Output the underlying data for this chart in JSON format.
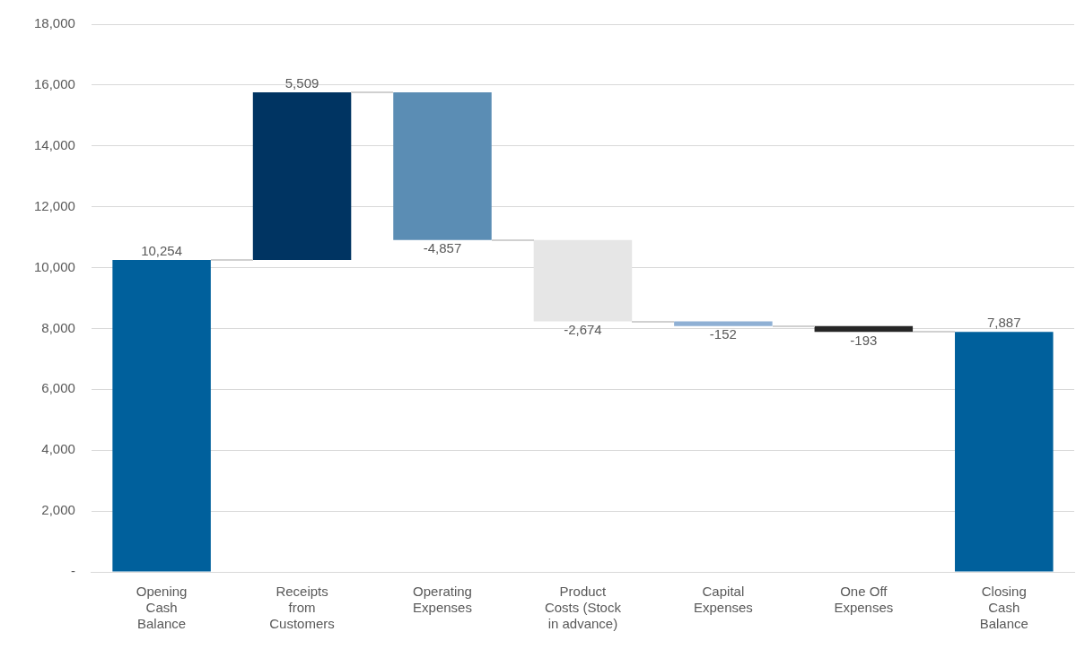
{
  "chart_data": {
    "type": "bar",
    "categories": [
      "Opening Cash Balance",
      "Receipts from Customers",
      "Operating Expenses",
      "Product Costs (Stock in advance)",
      "Capital Expenses",
      "One Off Expenses",
      "Closing Cash Balance"
    ],
    "base": [
      0,
      10254,
      15763,
      10906,
      8232,
      8080,
      0
    ],
    "values": [
      10254,
      5509,
      -4857,
      -2674,
      -152,
      -193,
      7887
    ],
    "colors": [
      "#00609c",
      "#003462",
      "#5b8db4",
      "#e6e6e6",
      "#8fb0d4",
      "#262626",
      "#00609c"
    ],
    "value_labels": [
      "10,254",
      "5,509",
      "-4,857",
      "-2,674",
      "-152",
      "-193",
      "7,887"
    ],
    "ylim": [
      0,
      18000
    ],
    "yticks": [
      {
        "value": 0,
        "label": "-"
      },
      {
        "value": 2000,
        "label": "2,000"
      },
      {
        "value": 4000,
        "label": "4,000"
      },
      {
        "value": 6000,
        "label": "6,000"
      },
      {
        "value": 8000,
        "label": "8,000"
      },
      {
        "value": 10000,
        "label": "10,000"
      },
      {
        "value": 12000,
        "label": "12,000"
      },
      {
        "value": 14000,
        "label": "14,000"
      },
      {
        "value": 16000,
        "label": "16,000"
      },
      {
        "value": 18000,
        "label": "18,000"
      }
    ],
    "grid": "y",
    "legend": false
  }
}
